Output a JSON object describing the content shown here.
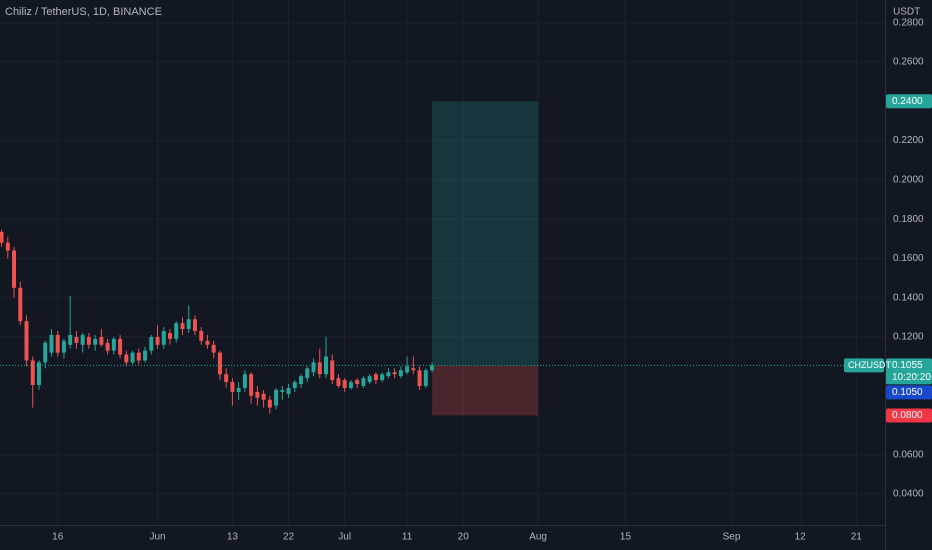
{
  "chart_data": {
    "type": "candlestick",
    "title": "Chiliz / TetherUS, 1D, BINANCE",
    "y_unit": "USDT",
    "up_color": "#26a69a",
    "down_color": "#ef5350",
    "ohlc": [
      [
        0.1735,
        0.1745,
        0.166,
        0.168
      ],
      [
        0.168,
        0.171,
        0.16,
        0.164
      ],
      [
        0.164,
        0.166,
        0.14,
        0.145
      ],
      [
        0.145,
        0.148,
        0.126,
        0.128
      ],
      [
        0.128,
        0.131,
        0.105,
        0.108
      ],
      [
        0.108,
        0.11,
        0.084,
        0.0955
      ],
      [
        0.0955,
        0.108,
        0.093,
        0.107
      ],
      [
        0.107,
        0.118,
        0.104,
        0.117
      ],
      [
        0.112,
        0.124,
        0.11,
        0.121
      ],
      [
        0.121,
        0.123,
        0.11,
        0.112
      ],
      [
        0.112,
        0.119,
        0.109,
        0.118
      ],
      [
        0.116,
        0.141,
        0.114,
        0.121
      ],
      [
        0.12,
        0.123,
        0.114,
        0.117
      ],
      [
        0.116,
        0.122,
        0.112,
        0.121
      ],
      [
        0.12,
        0.122,
        0.114,
        0.116
      ],
      [
        0.116,
        0.121,
        0.113,
        0.119
      ],
      [
        0.12,
        0.124,
        0.115,
        0.116
      ],
      [
        0.117,
        0.119,
        0.111,
        0.113
      ],
      [
        0.113,
        0.12,
        0.111,
        0.119
      ],
      [
        0.119,
        0.121,
        0.109,
        0.111
      ],
      [
        0.111,
        0.113,
        0.105,
        0.107
      ],
      [
        0.107,
        0.113,
        0.106,
        0.112
      ],
      [
        0.112,
        0.114,
        0.106,
        0.108
      ],
      [
        0.108,
        0.115,
        0.107,
        0.113
      ],
      [
        0.113,
        0.121,
        0.111,
        0.12
      ],
      [
        0.12,
        0.126,
        0.114,
        0.116
      ],
      [
        0.116,
        0.125,
        0.114,
        0.123
      ],
      [
        0.122,
        0.124,
        0.116,
        0.119
      ],
      [
        0.119,
        0.128,
        0.117,
        0.127
      ],
      [
        0.127,
        0.13,
        0.121,
        0.124
      ],
      [
        0.124,
        0.136,
        0.122,
        0.129
      ],
      [
        0.129,
        0.131,
        0.121,
        0.123
      ],
      [
        0.123,
        0.125,
        0.116,
        0.118
      ],
      [
        0.118,
        0.121,
        0.114,
        0.116
      ],
      [
        0.116,
        0.118,
        0.109,
        0.112
      ],
      [
        0.112,
        0.113,
        0.098,
        0.101
      ],
      [
        0.101,
        0.104,
        0.094,
        0.097
      ],
      [
        0.097,
        0.099,
        0.085,
        0.092
      ],
      [
        0.092,
        0.097,
        0.088,
        0.094
      ],
      [
        0.094,
        0.103,
        0.092,
        0.101
      ],
      [
        0.101,
        0.102,
        0.086,
        0.09
      ],
      [
        0.092,
        0.095,
        0.085,
        0.089
      ],
      [
        0.091,
        0.093,
        0.084,
        0.088
      ],
      [
        0.088,
        0.09,
        0.081,
        0.084
      ],
      [
        0.085,
        0.094,
        0.083,
        0.093
      ],
      [
        0.092,
        0.095,
        0.088,
        0.093
      ],
      [
        0.091,
        0.096,
        0.089,
        0.094
      ],
      [
        0.094,
        0.098,
        0.092,
        0.097
      ],
      [
        0.096,
        0.101,
        0.094,
        0.1
      ],
      [
        0.099,
        0.105,
        0.097,
        0.104
      ],
      [
        0.102,
        0.109,
        0.1,
        0.107
      ],
      [
        0.107,
        0.114,
        0.099,
        0.101
      ],
      [
        0.101,
        0.12,
        0.099,
        0.11
      ],
      [
        0.108,
        0.111,
        0.096,
        0.098
      ],
      [
        0.099,
        0.101,
        0.094,
        0.095
      ],
      [
        0.098,
        0.099,
        0.092,
        0.094
      ],
      [
        0.094,
        0.098,
        0.093,
        0.097
      ],
      [
        0.098,
        0.099,
        0.094,
        0.096
      ],
      [
        0.095,
        0.1,
        0.094,
        0.099
      ],
      [
        0.097,
        0.101,
        0.096,
        0.1
      ],
      [
        0.101,
        0.102,
        0.096,
        0.098
      ],
      [
        0.098,
        0.102,
        0.097,
        0.101
      ],
      [
        0.1,
        0.104,
        0.099,
        0.102
      ],
      [
        0.102,
        0.104,
        0.099,
        0.101
      ],
      [
        0.1,
        0.105,
        0.099,
        0.103
      ],
      [
        0.102,
        0.11,
        0.101,
        0.105
      ],
      [
        0.104,
        0.11,
        0.101,
        0.103
      ],
      [
        0.103,
        0.105,
        0.093,
        0.095
      ],
      [
        0.095,
        0.104,
        0.094,
        0.103
      ],
      [
        0.103,
        0.107,
        0.102,
        0.1055
      ]
    ],
    "xlim": [
      -0.25,
      141.6
    ],
    "xticks": [
      {
        "value": 9,
        "label": "16"
      },
      {
        "value": 25,
        "label": "Jun"
      },
      {
        "value": 37,
        "label": "13"
      },
      {
        "value": 46,
        "label": "22"
      },
      {
        "value": 55,
        "label": "Jul"
      },
      {
        "value": 65,
        "label": "11"
      },
      {
        "value": 74,
        "label": "20"
      },
      {
        "value": 86,
        "label": "Aug"
      },
      {
        "value": 100,
        "label": "15"
      },
      {
        "value": 117,
        "label": "Sep"
      },
      {
        "value": 128,
        "label": "12"
      },
      {
        "value": 137,
        "label": "21"
      }
    ],
    "ylim": [
      0.0242,
      0.2916
    ],
    "yticks": [
      {
        "value": 0.04,
        "label": "0.0400"
      },
      {
        "value": 0.06,
        "label": "0.0600"
      },
      {
        "value": 0.12,
        "label": "0.1200"
      },
      {
        "value": 0.14,
        "label": "0.1400"
      },
      {
        "value": 0.16,
        "label": "0.1600"
      },
      {
        "value": 0.18,
        "label": "0.1800"
      },
      {
        "value": 0.2,
        "label": "0.2000"
      },
      {
        "value": 0.22,
        "label": "0.2200"
      },
      {
        "value": 0.26,
        "label": "0.2600"
      },
      {
        "value": 0.28,
        "label": "0.2800"
      }
    ],
    "grid": true,
    "position": {
      "start": 69,
      "end": 86,
      "entry": 0.1055,
      "target": {
        "value": 0.24,
        "label": "0.2400"
      },
      "stop": {
        "value": 0.08,
        "label": "0.0800"
      }
    },
    "last_price": {
      "value": 0.1055,
      "symbol": "CHZUSDT",
      "countdown": "10:20:20"
    },
    "bid_price": {
      "value": 0.105,
      "label": "0.1050"
    }
  }
}
